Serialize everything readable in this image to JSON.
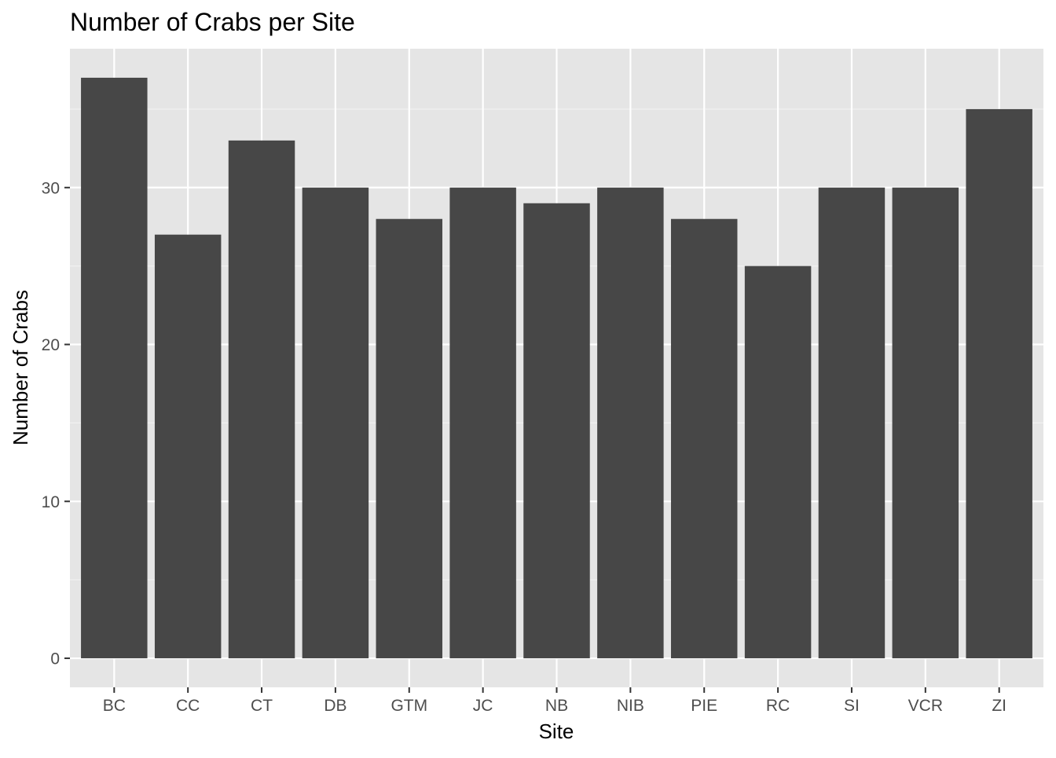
{
  "chart_data": {
    "type": "bar",
    "title": "Number of Crabs per Site",
    "xlabel": "Site",
    "ylabel": "Number of Crabs",
    "categories": [
      "BC",
      "CC",
      "CT",
      "DB",
      "GTM",
      "JC",
      "NB",
      "NIB",
      "PIE",
      "RC",
      "SI",
      "VCR",
      "ZI"
    ],
    "values": [
      37,
      27,
      33,
      30,
      28,
      30,
      29,
      30,
      28,
      25,
      30,
      30,
      35
    ],
    "yticks": [
      0,
      10,
      20,
      30
    ],
    "ylim": [
      -1.85,
      38.85
    ],
    "grid": true,
    "legend": "none",
    "colors": {
      "bar": "#474747",
      "panel": "#e5e5e5",
      "grid_major": "#ffffff",
      "grid_minor": "#f2f2f2",
      "tick_text": "#4d4d4d",
      "tick_mark": "#333333"
    }
  }
}
